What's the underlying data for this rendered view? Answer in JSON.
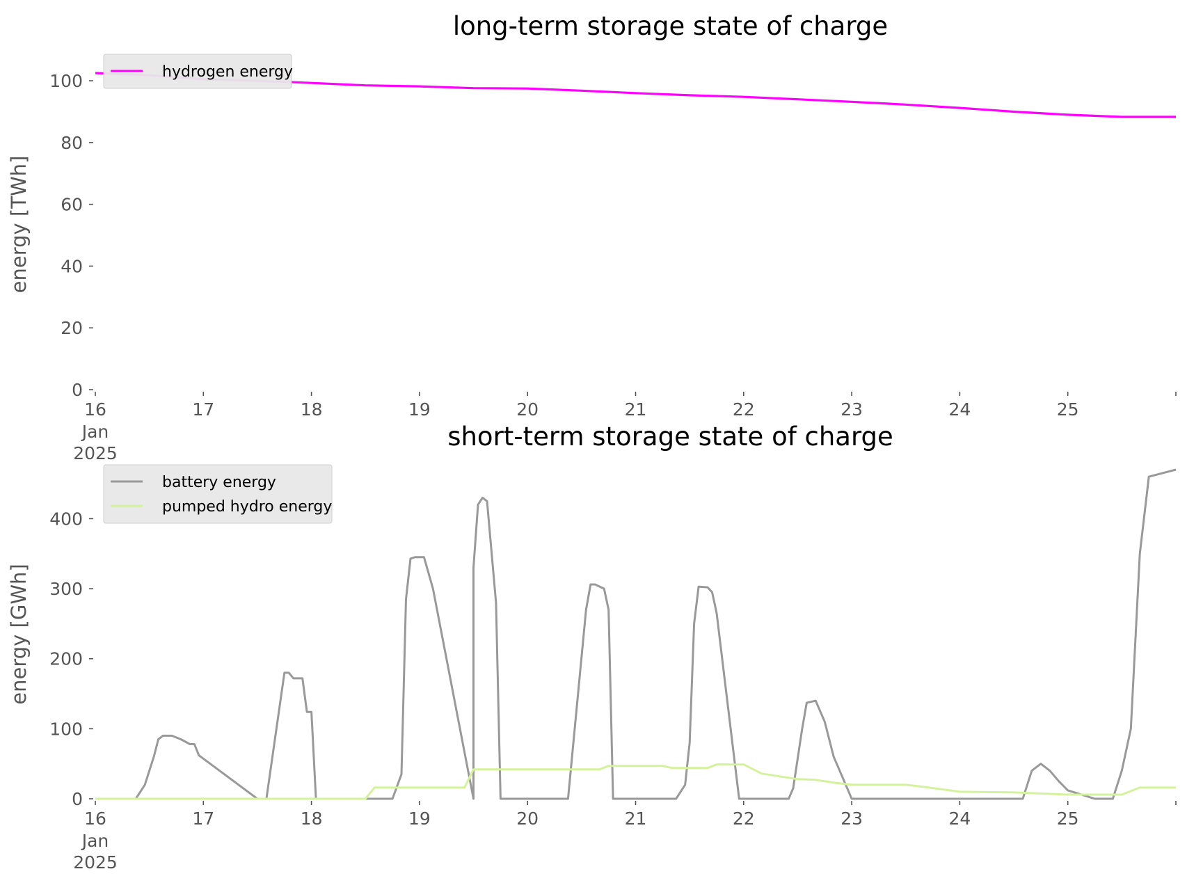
{
  "chart_data": [
    {
      "type": "line",
      "title": "long-term storage state of charge",
      "xlabel": "",
      "ylabel": "energy [TWh]",
      "x_range": [
        "2025-01-16",
        "2025-01-26"
      ],
      "ylim": [
        0,
        107
      ],
      "yticks": [
        0,
        20,
        40,
        60,
        80,
        100
      ],
      "xticks": [
        "16",
        "17",
        "18",
        "19",
        "20",
        "21",
        "22",
        "23",
        "24",
        "25"
      ],
      "xtick_sublabel": [
        "Jan",
        "2025"
      ],
      "grid": false,
      "legend_position": "top-left",
      "series": [
        {
          "name": "hydrogen energy",
          "color": "#ff00ff",
          "x": [
            "2025-01-16T00:00",
            "2025-01-16T12:00",
            "2025-01-17T00:00",
            "2025-01-17T12:00",
            "2025-01-18T00:00",
            "2025-01-18T12:00",
            "2025-01-19T00:00",
            "2025-01-19T12:00",
            "2025-01-20T00:00",
            "2025-01-20T12:00",
            "2025-01-21T00:00",
            "2025-01-21T12:00",
            "2025-01-22T00:00",
            "2025-01-22T12:00",
            "2025-01-23T00:00",
            "2025-01-23T12:00",
            "2025-01-24T00:00",
            "2025-01-24T12:00",
            "2025-01-25T00:00",
            "2025-01-25T12:00",
            "2025-01-26T00:00"
          ],
          "y": [
            102.5,
            101.8,
            100.5,
            100.0,
            99.3,
            98.5,
            98.2,
            97.6,
            97.5,
            96.8,
            96.0,
            95.3,
            94.8,
            94.0,
            93.2,
            92.3,
            91.2,
            90.0,
            89.0,
            88.3,
            88.3
          ]
        }
      ]
    },
    {
      "type": "line",
      "title": "short-term storage state of charge",
      "xlabel": "",
      "ylabel": "energy [GWh]",
      "x_range": [
        "2025-01-16",
        "2025-01-26"
      ],
      "ylim": [
        0,
        470
      ],
      "yticks": [
        0,
        100,
        200,
        300,
        400
      ],
      "xticks": [
        "16",
        "17",
        "18",
        "19",
        "20",
        "21",
        "22",
        "23",
        "24",
        "25"
      ],
      "xtick_sublabel": [
        "Jan",
        "2025"
      ],
      "grid": false,
      "legend_position": "top-left",
      "series": [
        {
          "name": "battery energy",
          "color": "#999999",
          "x": [
            "2025-01-16T00:00",
            "2025-01-16T09:00",
            "2025-01-16T11:00",
            "2025-01-16T13:00",
            "2025-01-16T14:00",
            "2025-01-16T15:00",
            "2025-01-16T17:00",
            "2025-01-16T19:00",
            "2025-01-16T21:00",
            "2025-01-16T22:00",
            "2025-01-16T23:00",
            "2025-01-17T12:00",
            "2025-01-17T14:00",
            "2025-01-17T18:00",
            "2025-01-17T19:00",
            "2025-01-17T20:00",
            "2025-01-17T22:00",
            "2025-01-17T23:00",
            "2025-01-17T24:00",
            "2025-01-18T01:00",
            "2025-01-18T02:00",
            "2025-01-18T03:00",
            "2025-01-18T18:00",
            "2025-01-18T20:00",
            "2025-01-18T21:00",
            "2025-01-18T22:00",
            "2025-01-18T23:00",
            "2025-01-19T01:00",
            "2025-01-19T03:00",
            "2025-01-19T12:00",
            "2025-01-19T12:00",
            "2025-01-19T13:00",
            "2025-01-19T14:00",
            "2025-01-19T15:00",
            "2025-01-19T17:00",
            "2025-01-19T18:00",
            "2025-01-19T19:00",
            "2025-01-20T00:00",
            "2025-01-20T09:00",
            "2025-01-20T13:00",
            "2025-01-20T14:00",
            "2025-01-20T15:00",
            "2025-01-20T17:00",
            "2025-01-20T18:00",
            "2025-01-20T19:00",
            "2025-01-20T23:00",
            "2025-01-21T00:00",
            "2025-01-21T09:00",
            "2025-01-21T11:00",
            "2025-01-21T12:00",
            "2025-01-21T13:00",
            "2025-01-21T14:00",
            "2025-01-21T16:00",
            "2025-01-21T17:00",
            "2025-01-21T18:00",
            "2025-01-21T23:00",
            "2025-01-22T00:00",
            "2025-01-22T10:00",
            "2025-01-22T11:00",
            "2025-01-22T13:00",
            "2025-01-22T14:00",
            "2025-01-22T16:00",
            "2025-01-22T18:00",
            "2025-01-22T20:00",
            "2025-01-22T22:00",
            "2025-01-23T00:00",
            "2025-01-24T14:00",
            "2025-01-24T16:00",
            "2025-01-24T18:00",
            "2025-01-24T20:00",
            "2025-01-24T22:00",
            "2025-01-24T24:00",
            "2025-01-25T06:00",
            "2025-01-25T08:00",
            "2025-01-25T10:00",
            "2025-01-25T12:00",
            "2025-01-25T14:00",
            "2025-01-25T16:00",
            "2025-01-25T18:00",
            "2025-01-26T00:00"
          ],
          "y": [
            0,
            0,
            20,
            60,
            85,
            90,
            90,
            85,
            78,
            78,
            62,
            0,
            0,
            180,
            180,
            172,
            172,
            124,
            124,
            0,
            0,
            0,
            0,
            35,
            285,
            343,
            345,
            345,
            300,
            0,
            330,
            420,
            430,
            425,
            280,
            0,
            0,
            0,
            0,
            270,
            306,
            306,
            300,
            270,
            0,
            0,
            0,
            0,
            20,
            80,
            250,
            303,
            302,
            295,
            265,
            0,
            0,
            0,
            15,
            100,
            137,
            140,
            110,
            60,
            30,
            0,
            0,
            40,
            50,
            40,
            25,
            12,
            0,
            0,
            0,
            40,
            100,
            350,
            460,
            470
          ],
          "note_values": []
        },
        {
          "name": "pumped hydro energy",
          "color": "#d4f29b",
          "x": [
            "2025-01-16T00:00",
            "2025-01-18T12:00",
            "2025-01-18T14:00",
            "2025-01-19T10:00",
            "2025-01-19T12:00",
            "2025-01-20T16:00",
            "2025-01-20T18:00",
            "2025-01-21T06:00",
            "2025-01-21T08:00",
            "2025-01-21T16:00",
            "2025-01-21T18:00",
            "2025-01-22T00:00",
            "2025-01-22T04:00",
            "2025-01-22T08:00",
            "2025-01-22T12:00",
            "2025-01-22T16:00",
            "2025-01-22T20:00",
            "2025-01-23T00:00",
            "2025-01-23T12:00",
            "2025-01-23T16:00",
            "2025-01-24T00:00",
            "2025-01-24T12:00",
            "2025-01-25T00:00",
            "2025-01-25T12:00",
            "2025-01-25T16:00",
            "2025-01-26T00:00"
          ],
          "y": [
            0,
            0,
            16,
            16,
            42,
            42,
            47,
            47,
            44,
            44,
            49,
            49,
            36,
            32,
            28,
            27,
            23,
            20,
            20,
            17,
            10,
            9,
            6,
            6,
            16,
            16
          ]
        }
      ]
    }
  ],
  "colors": {
    "legend_background": "#e8e8e8",
    "legend_border": "#cccccc",
    "axis_text": "#555555"
  }
}
